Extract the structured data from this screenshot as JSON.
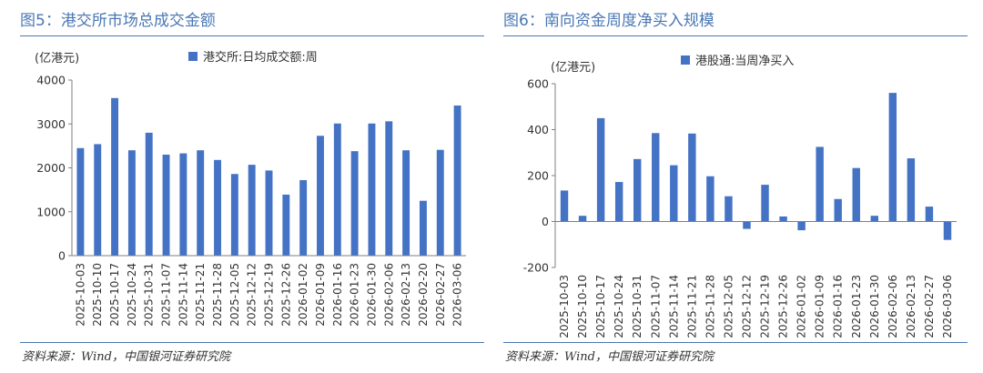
{
  "panels": [
    {
      "title": "图5：港交所市场总成交金额",
      "unit_label": "(亿港元)",
      "source": "资料来源：Wind，中国银河证券研究院",
      "chart_data": {
        "type": "bar",
        "title": "图5：港交所市场总成交金额",
        "ylabel": "(亿港元)",
        "xlabel": "",
        "ylim": [
          0,
          4000
        ],
        "yticks": [
          0,
          1000,
          2000,
          3000,
          4000
        ],
        "grid": false,
        "legend": "top-center",
        "bar_color": "#4472c4",
        "categories": [
          "2025-10-03",
          "2025-10-10",
          "2025-10-17",
          "2025-10-24",
          "2025-10-31",
          "2025-11-07",
          "2025-11-14",
          "2025-11-21",
          "2025-11-28",
          "2025-12-05",
          "2025-12-12",
          "2025-12-19",
          "2025-12-26",
          "2026-01-02",
          "2026-01-09",
          "2026-01-16",
          "2026-01-23",
          "2026-01-30",
          "2026-02-06",
          "2026-02-13",
          "2026-02-20",
          "2026-02-27",
          "2026-03-06"
        ],
        "series": [
          {
            "name": "港交所:日均成交额:周",
            "values": [
              2450,
              2540,
              3590,
              2400,
              2800,
              2300,
              2330,
              2400,
              2180,
              1860,
              2070,
              1940,
              1390,
              1720,
              2730,
              3010,
              2380,
              3010,
              3060,
              2400,
              1250,
              2410,
              3420
            ]
          }
        ]
      }
    },
    {
      "title": "图6：南向资金周度净买入规模",
      "unit_label": "(亿港元)",
      "source": "资料来源：Wind，中国银河证券研究院",
      "chart_data": {
        "type": "bar",
        "title": "图6：南向资金周度净买入规模",
        "ylabel": "(亿港元)",
        "xlabel": "",
        "ylim": [
          -200,
          600
        ],
        "yticks": [
          -200,
          0,
          200,
          400,
          600
        ],
        "grid": false,
        "legend": "top-center",
        "bar_color": "#4472c4",
        "categories": [
          "2025-10-03",
          "2025-10-10",
          "2025-10-17",
          "2025-10-24",
          "2025-10-31",
          "2025-11-07",
          "2025-11-14",
          "2025-11-21",
          "2025-11-28",
          "2025-12-05",
          "2025-12-12",
          "2025-12-19",
          "2025-12-26",
          "2026-01-02",
          "2026-01-09",
          "2026-01-16",
          "2026-01-23",
          "2026-01-30",
          "2026-02-06",
          "2026-02-13",
          "2026-02-27",
          "2026-03-06"
        ],
        "series": [
          {
            "name": "港股通:当周净买入",
            "values": [
              135,
              25,
              450,
              172,
              272,
              385,
              245,
              383,
              197,
              110,
              -32,
              160,
              22,
              -38,
              325,
              98,
              233,
              25,
              560,
              275,
              65,
              -80
            ]
          }
        ]
      }
    }
  ]
}
